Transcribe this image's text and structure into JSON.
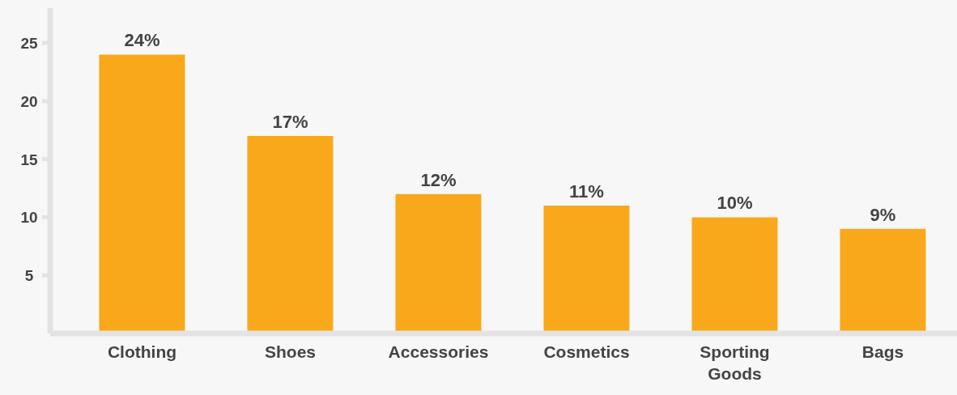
{
  "chart_data": {
    "type": "bar",
    "categories": [
      "Clothing",
      "Shoes",
      "Accessories",
      "Cosmetics",
      "Sporting Goods",
      "Bags"
    ],
    "values": [
      24,
      17,
      12,
      11,
      10,
      9
    ],
    "value_labels": [
      "24%",
      "17%",
      "12%",
      "11%",
      "10%",
      "9%"
    ],
    "color": "#f9a81b",
    "ylim": [
      0,
      28
    ],
    "yticks": [
      5,
      10,
      15,
      20,
      25
    ],
    "grid": false,
    "legend": false
  }
}
